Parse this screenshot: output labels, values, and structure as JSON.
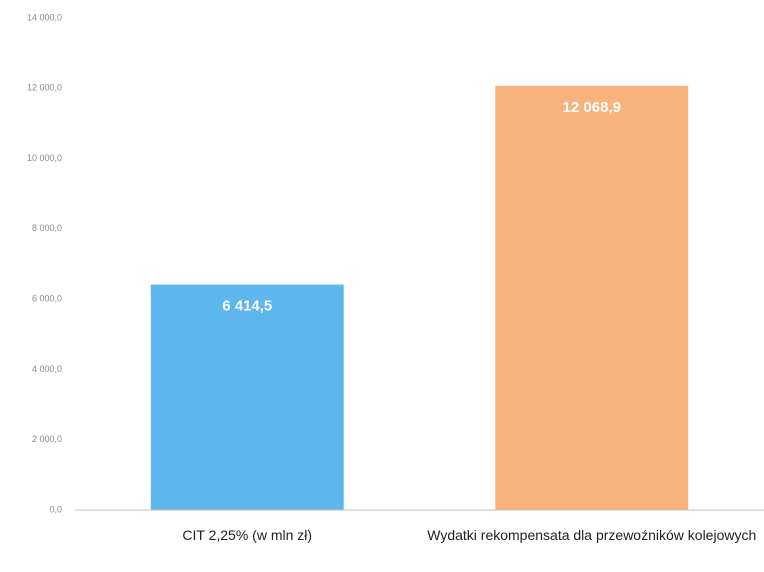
{
  "chart_data": {
    "type": "bar",
    "categories": [
      "CIT 2,25% (w mln zł)",
      "Wydatki rekompensata dla przewoźników kolejowych"
    ],
    "values": [
      6414.5,
      12068.9
    ],
    "value_labels": [
      "6 414,5",
      "12 068,9"
    ],
    "colors": [
      "#5db6ee",
      "#f8b27b"
    ],
    "ylim": [
      0,
      14000
    ],
    "yticks": [
      {
        "value": 0,
        "label": "0,0"
      },
      {
        "value": 2000,
        "label": "2 000,0"
      },
      {
        "value": 4000,
        "label": "4 000,0"
      },
      {
        "value": 6000,
        "label": "6 000,0"
      },
      {
        "value": 8000,
        "label": "8 000,0"
      },
      {
        "value": 10000,
        "label": "10 000,0"
      },
      {
        "value": 12000,
        "label": "12 000,0"
      },
      {
        "value": 14000,
        "label": "14 000,0"
      }
    ],
    "grid": false
  }
}
